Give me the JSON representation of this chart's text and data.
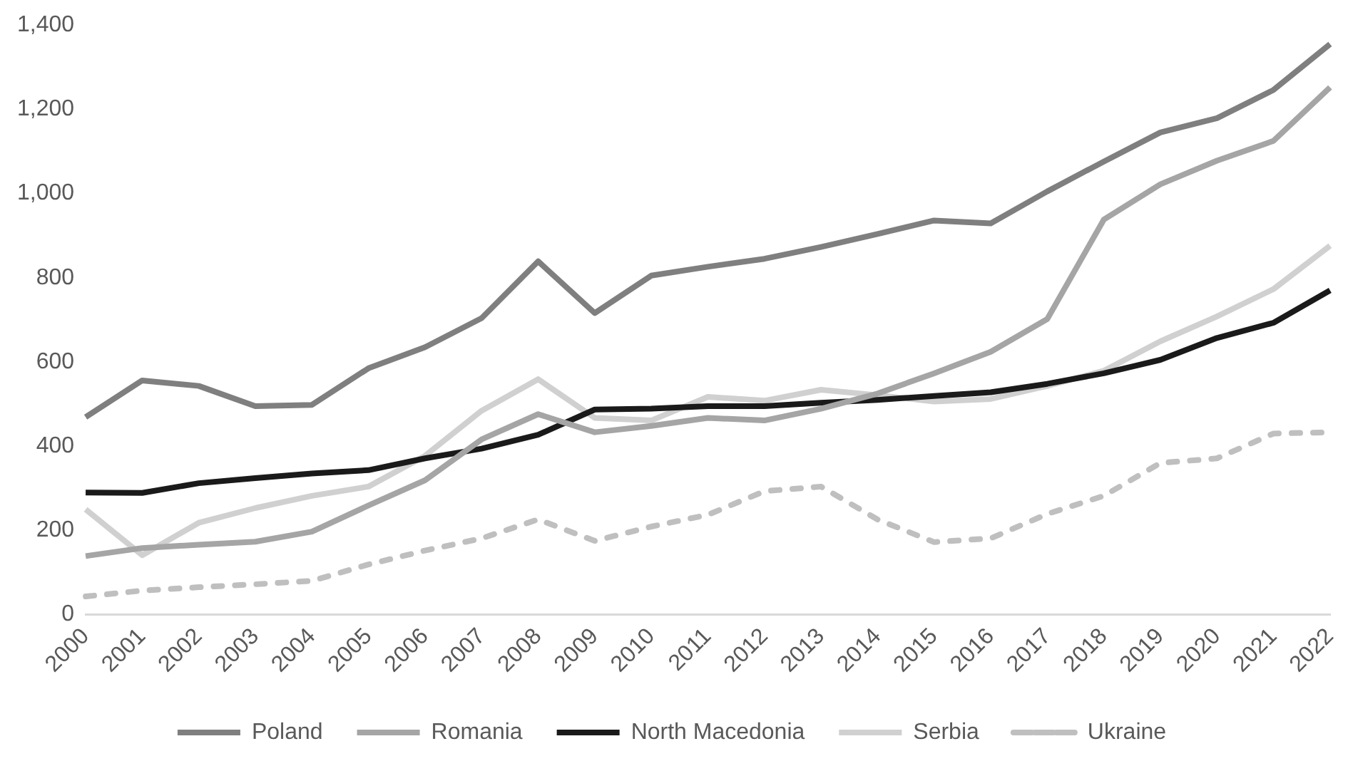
{
  "chart_data": {
    "type": "line",
    "categories": [
      "2000",
      "2001",
      "2002",
      "2003",
      "2004",
      "2005",
      "2006",
      "2007",
      "2008",
      "2009",
      "2010",
      "2011",
      "2012",
      "2013",
      "2014",
      "2015",
      "2016",
      "2017",
      "2018",
      "2019",
      "2020",
      "2021",
      "2022"
    ],
    "series": [
      {
        "name": "Poland",
        "color": "#7f7f7f",
        "values": [
          469,
          556,
          543,
          495,
          498,
          585,
          635,
          704,
          839,
          716,
          805,
          826,
          845,
          873,
          904,
          936,
          929,
          1005,
          1076,
          1145,
          1179,
          1246,
          1355
        ]
      },
      {
        "name": "Romania",
        "color": "#a5a5a5",
        "values": [
          139,
          158,
          166,
          173,
          197,
          259,
          319,
          416,
          476,
          433,
          448,
          467,
          461,
          489,
          525,
          573,
          624,
          702,
          938,
          1022,
          1078,
          1125,
          1252
        ]
      },
      {
        "name": "North Macedonia",
        "color": "#1a1a1a",
        "values": [
          290,
          289,
          312,
          324,
          335,
          343,
          371,
          394,
          427,
          487,
          489,
          495,
          495,
          503,
          510,
          519,
          528,
          548,
          573,
          605,
          657,
          693,
          770
        ]
      },
      {
        "name": "Serbia",
        "color": "#d0d0d0",
        "values": [
          250,
          141,
          218,
          253,
          282,
          304,
          377,
          484,
          559,
          467,
          461,
          517,
          508,
          534,
          521,
          506,
          512,
          543,
          579,
          649,
          708,
          773,
          876
        ]
      },
      {
        "name": "Ukraine",
        "color": "#bfbfbf",
        "line_style": "dashed",
        "values": [
          43,
          57,
          65,
          72,
          80,
          119,
          152,
          181,
          226,
          175,
          209,
          237,
          293,
          304,
          226,
          172,
          181,
          239,
          282,
          360,
          371,
          430,
          433
        ]
      }
    ],
    "ylim": [
      0,
      1400
    ],
    "yticks": [
      0,
      200,
      400,
      600,
      800,
      {
        "value": 1000,
        "label": "1,000"
      },
      {
        "value": 1200,
        "label": "1,200"
      },
      {
        "value": 1400,
        "label": "1,400"
      }
    ],
    "grid": false,
    "legend": "bottom",
    "marker": "none",
    "line_style": "solid"
  }
}
